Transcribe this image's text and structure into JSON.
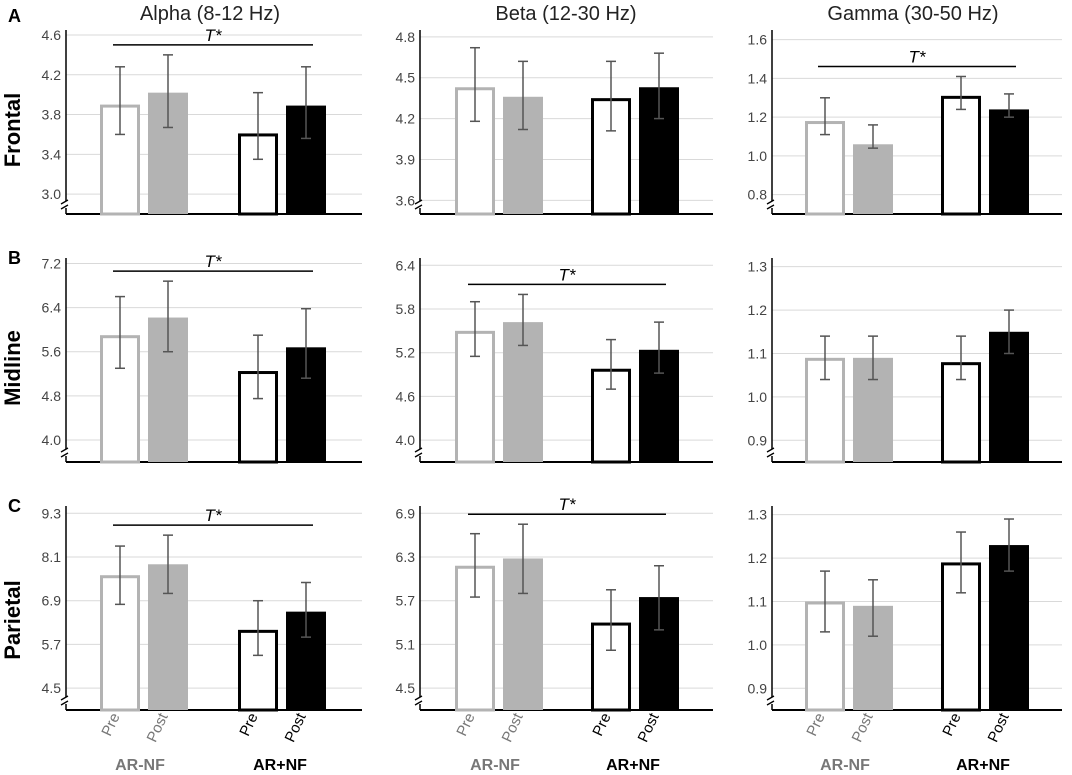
{
  "chart_data": {
    "type": "bar",
    "columns": [
      "Alpha (8-12 Hz)",
      "Beta (12-30 Hz)",
      "Gamma (30-50 Hz)"
    ],
    "rows": [
      {
        "letter": "A",
        "label": "Frontal"
      },
      {
        "letter": "B",
        "label": "Midline"
      },
      {
        "letter": "C",
        "label": "Parietal"
      }
    ],
    "conditions": [
      "Pre",
      "Post"
    ],
    "groups": [
      "AR-NF",
      "AR+NF"
    ],
    "bar_colors": {
      "AR-NF Pre": "#ffffff",
      "AR-NF Post": "#b3b3b3",
      "AR+NF Pre": "#ffffff",
      "AR+NF Post": "#000000"
    },
    "panels": [
      {
        "row": 0,
        "col": 0,
        "ylim": [
          2.8,
          4.65
        ],
        "ticks": [
          "3.0",
          "3.4",
          "3.8",
          "4.2",
          "4.6"
        ],
        "significance": "T*",
        "series": [
          {
            "name": "AR-NF Pre",
            "value": 3.9,
            "err": [
              3.6,
              4.28
            ]
          },
          {
            "name": "AR-NF Post",
            "value": 4.02,
            "err": [
              3.67,
              4.4
            ]
          },
          {
            "name": "AR+NF Pre",
            "value": 3.61,
            "err": [
              3.35,
              4.02
            ]
          },
          {
            "name": "AR+NF Post",
            "value": 3.89,
            "err": [
              3.56,
              4.28
            ]
          }
        ]
      },
      {
        "row": 0,
        "col": 1,
        "ylim": [
          3.5,
          4.85
        ],
        "ticks": [
          "3.6",
          "3.9",
          "4.2",
          "4.5",
          "4.8"
        ],
        "significance": "",
        "series": [
          {
            "name": "AR-NF Pre",
            "value": 4.43,
            "err": [
              4.18,
              4.72
            ]
          },
          {
            "name": "AR-NF Post",
            "value": 4.36,
            "err": [
              4.12,
              4.62
            ]
          },
          {
            "name": "AR+NF Pre",
            "value": 4.35,
            "err": [
              4.11,
              4.62
            ]
          },
          {
            "name": "AR+NF Post",
            "value": 4.43,
            "err": [
              4.2,
              4.68
            ]
          }
        ]
      },
      {
        "row": 0,
        "col": 2,
        "ylim": [
          0.7,
          1.65
        ],
        "ticks": [
          "0.8",
          "1.0",
          "1.2",
          "1.4",
          "1.6"
        ],
        "significance": "T*",
        "series": [
          {
            "name": "AR-NF Pre",
            "value": 1.18,
            "err": [
              1.11,
              1.3
            ]
          },
          {
            "name": "AR-NF Post",
            "value": 1.06,
            "err": [
              1.04,
              1.16
            ]
          },
          {
            "name": "AR+NF Pre",
            "value": 1.31,
            "err": [
              1.24,
              1.41
            ]
          },
          {
            "name": "AR+NF Post",
            "value": 1.24,
            "err": [
              1.2,
              1.32
            ]
          }
        ]
      },
      {
        "row": 1,
        "col": 0,
        "ylim": [
          3.6,
          7.3
        ],
        "ticks": [
          "4.0",
          "4.8",
          "5.6",
          "6.4",
          "7.2"
        ],
        "significance": "T*",
        "series": [
          {
            "name": "AR-NF Pre",
            "value": 5.9,
            "err": [
              5.3,
              6.6
            ]
          },
          {
            "name": "AR-NF Post",
            "value": 6.22,
            "err": [
              5.6,
              6.88
            ]
          },
          {
            "name": "AR+NF Pre",
            "value": 5.25,
            "err": [
              4.75,
              5.9
            ]
          },
          {
            "name": "AR+NF Post",
            "value": 5.68,
            "err": [
              5.12,
              6.38
            ]
          }
        ]
      },
      {
        "row": 1,
        "col": 1,
        "ylim": [
          3.7,
          6.5
        ],
        "ticks": [
          "4.0",
          "4.6",
          "5.2",
          "5.8",
          "6.4"
        ],
        "significance": "T*",
        "series": [
          {
            "name": "AR-NF Pre",
            "value": 5.5,
            "err": [
              5.15,
              5.9
            ]
          },
          {
            "name": "AR-NF Post",
            "value": 5.62,
            "err": [
              5.3,
              6.0
            ]
          },
          {
            "name": "AR+NF Pre",
            "value": 4.98,
            "err": [
              4.7,
              5.38
            ]
          },
          {
            "name": "AR+NF Post",
            "value": 5.24,
            "err": [
              4.92,
              5.62
            ]
          }
        ]
      },
      {
        "row": 1,
        "col": 2,
        "ylim": [
          0.85,
          1.32
        ],
        "ticks": [
          "0.9",
          "1.0",
          "1.1",
          "1.2",
          "1.3"
        ],
        "significance": "",
        "series": [
          {
            "name": "AR-NF Pre",
            "value": 1.09,
            "err": [
              1.04,
              1.14
            ]
          },
          {
            "name": "AR-NF Post",
            "value": 1.09,
            "err": [
              1.04,
              1.14
            ]
          },
          {
            "name": "AR+NF Pre",
            "value": 1.08,
            "err": [
              1.04,
              1.14
            ]
          },
          {
            "name": "AR+NF Post",
            "value": 1.15,
            "err": [
              1.1,
              1.2
            ]
          }
        ]
      },
      {
        "row": 2,
        "col": 0,
        "ylim": [
          3.9,
          9.5
        ],
        "ticks": [
          "4.5",
          "5.7",
          "6.9",
          "8.1",
          "9.3"
        ],
        "significance": "T*",
        "series": [
          {
            "name": "AR-NF Pre",
            "value": 7.6,
            "err": [
              6.8,
              8.4
            ]
          },
          {
            "name": "AR-NF Post",
            "value": 7.9,
            "err": [
              7.1,
              8.7
            ]
          },
          {
            "name": "AR+NF Pre",
            "value": 6.1,
            "err": [
              5.4,
              6.9
            ]
          },
          {
            "name": "AR+NF Post",
            "value": 6.6,
            "err": [
              5.9,
              7.4
            ]
          }
        ]
      },
      {
        "row": 2,
        "col": 1,
        "ylim": [
          4.2,
          7.0
        ],
        "ticks": [
          "4.5",
          "5.1",
          "5.7",
          "6.3",
          "6.9"
        ],
        "significance": "T*",
        "series": [
          {
            "name": "AR-NF Pre",
            "value": 6.18,
            "err": [
              5.75,
              6.62
            ]
          },
          {
            "name": "AR-NF Post",
            "value": 6.28,
            "err": [
              5.8,
              6.75
            ]
          },
          {
            "name": "AR+NF Pre",
            "value": 5.4,
            "err": [
              5.02,
              5.85
            ]
          },
          {
            "name": "AR+NF Post",
            "value": 5.75,
            "err": [
              5.3,
              6.18
            ]
          }
        ]
      },
      {
        "row": 2,
        "col": 2,
        "ylim": [
          0.85,
          1.32
        ],
        "ticks": [
          "0.9",
          "1.0",
          "1.1",
          "1.2",
          "1.3"
        ],
        "significance": "",
        "series": [
          {
            "name": "AR-NF Pre",
            "value": 1.1,
            "err": [
              1.03,
              1.17
            ]
          },
          {
            "name": "AR-NF Post",
            "value": 1.09,
            "err": [
              1.02,
              1.15
            ]
          },
          {
            "name": "AR+NF Pre",
            "value": 1.19,
            "err": [
              1.12,
              1.26
            ]
          },
          {
            "name": "AR+NF Post",
            "value": 1.23,
            "err": [
              1.17,
              1.29
            ]
          }
        ]
      }
    ]
  }
}
